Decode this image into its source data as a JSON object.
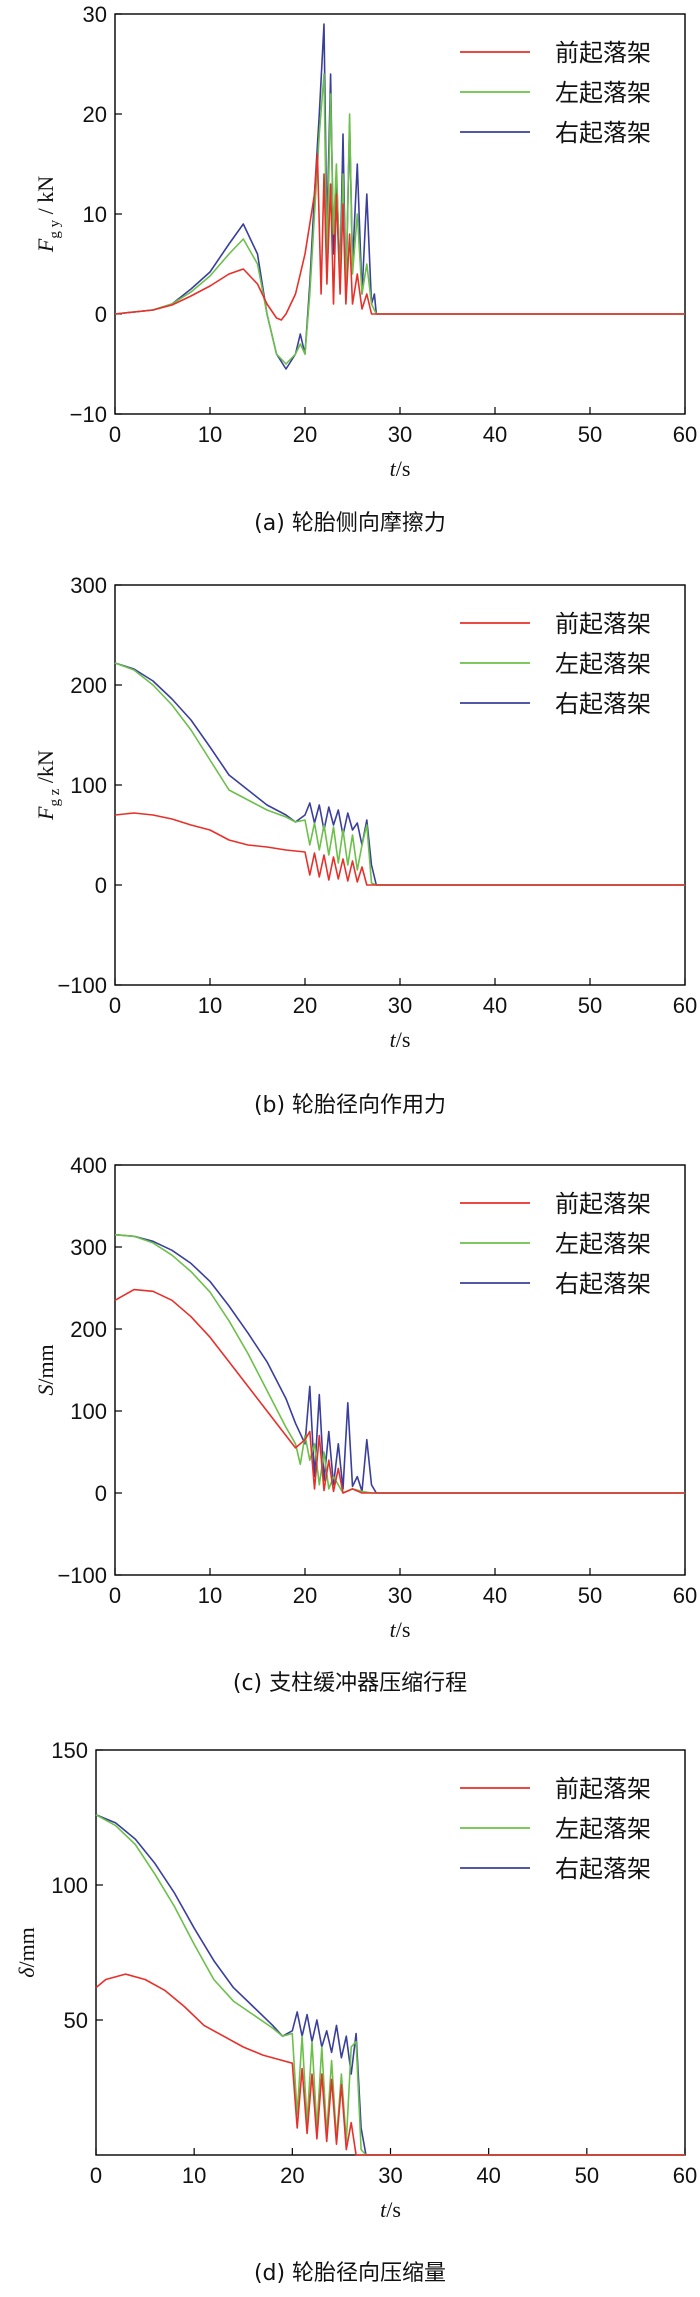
{
  "chart_data": [
    {
      "type": "line",
      "caption": "(a) 轮胎侧向摩擦力",
      "ylabel_main": "F",
      "ylabel_sub": "g y",
      "ylabel_unit": " / kN",
      "xlabel_main": "t",
      "xlabel_unit": "/s",
      "xlim": [
        0,
        60
      ],
      "ylim": [
        -10,
        30
      ],
      "xticks": [
        0,
        10,
        20,
        30,
        40,
        50,
        60
      ],
      "yticks": [
        -10,
        0,
        10,
        20,
        30
      ],
      "legend_position": "top-right",
      "series": [
        {
          "name": "前起落架",
          "color": "#e8302a",
          "x": [
            0,
            2,
            4,
            6,
            8,
            10,
            12,
            13.5,
            15,
            16,
            17,
            17.5,
            18,
            19,
            19.5,
            20,
            20.5,
            21,
            21.3,
            21.7,
            22,
            22.3,
            22.7,
            23,
            23.3,
            23.7,
            24,
            24.3,
            24.7,
            25,
            25.5,
            26,
            26.5,
            27,
            27.5,
            60
          ],
          "y": [
            0,
            0.2,
            0.4,
            0.9,
            1.8,
            2.8,
            4,
            4.5,
            3,
            1,
            -0.4,
            -0.6,
            0,
            2,
            4,
            6,
            9,
            12,
            16,
            2,
            14,
            3,
            13,
            1,
            12,
            2,
            11,
            1,
            8,
            1,
            4,
            0.5,
            2,
            0,
            0,
            0
          ]
        },
        {
          "name": "左起落架",
          "color": "#6cc04a",
          "x": [
            0,
            2,
            4,
            6,
            8,
            10,
            12,
            13.5,
            15,
            16,
            17,
            18,
            19,
            19.5,
            20,
            20.5,
            21,
            21.5,
            22,
            22.3,
            22.7,
            23,
            23.3,
            23.7,
            24,
            24.3,
            24.7,
            25,
            25.5,
            26,
            26.5,
            27,
            27.5,
            60
          ],
          "y": [
            0,
            0.2,
            0.4,
            1,
            2.2,
            3.8,
            6,
            7.5,
            5,
            0,
            -4,
            -5,
            -4,
            -3,
            -4,
            2,
            10,
            18,
            24,
            5,
            22,
            8,
            15,
            3,
            14,
            2,
            20,
            4,
            10,
            2,
            5,
            1,
            0,
            0
          ]
        },
        {
          "name": "右起落架",
          "color": "#3a3f9c",
          "x": [
            0,
            2,
            4,
            6,
            8,
            10,
            12,
            13.5,
            15,
            16,
            17,
            18,
            19,
            19.5,
            20,
            20.5,
            21,
            21.5,
            22,
            22.3,
            22.7,
            23,
            23.3,
            23.7,
            24,
            24.3,
            24.7,
            25,
            25.5,
            26,
            26.5,
            27,
            27.3,
            27.5,
            60
          ],
          "y": [
            0,
            0.2,
            0.4,
            1,
            2.5,
            4.2,
            7,
            9,
            6,
            0,
            -4,
            -5.5,
            -4,
            -2,
            -4,
            3,
            12,
            20,
            29,
            8,
            24,
            6,
            14,
            4,
            18,
            2,
            19,
            5,
            15,
            2,
            12,
            1,
            2,
            0,
            0
          ]
        }
      ]
    },
    {
      "type": "line",
      "caption": "(b) 轮胎径向作用力",
      "ylabel_main": "F",
      "ylabel_sub": "g z",
      "ylabel_unit": " /kN",
      "xlabel_main": "t",
      "xlabel_unit": "/s",
      "xlim": [
        0,
        60
      ],
      "ylim": [
        -100,
        300
      ],
      "xticks": [
        0,
        10,
        20,
        30,
        40,
        50,
        60
      ],
      "yticks": [
        -100,
        0,
        100,
        200,
        300
      ],
      "legend_position": "top-right",
      "series": [
        {
          "name": "前起落架",
          "color": "#e8302a",
          "x": [
            0,
            2,
            4,
            6,
            8,
            10,
            12,
            14,
            16,
            18,
            20,
            20.5,
            21,
            21.5,
            22,
            22.5,
            23,
            23.5,
            24,
            24.5,
            25,
            25.5,
            26,
            26.5,
            27,
            60
          ],
          "y": [
            70,
            72,
            70,
            66,
            60,
            55,
            45,
            40,
            38,
            35,
            33,
            10,
            32,
            8,
            30,
            5,
            28,
            6,
            26,
            4,
            24,
            3,
            18,
            0,
            0,
            0
          ]
        },
        {
          "name": "左起落架",
          "color": "#6cc04a",
          "x": [
            0,
            2,
            4,
            6,
            8,
            10,
            12,
            14,
            16,
            18,
            19,
            20,
            20.5,
            21,
            21.5,
            22,
            22.5,
            23,
            23.5,
            24,
            24.5,
            25,
            25.5,
            26,
            26.5,
            27,
            27.5,
            60
          ],
          "y": [
            222,
            215,
            200,
            180,
            155,
            125,
            95,
            85,
            75,
            68,
            63,
            65,
            40,
            62,
            35,
            60,
            30,
            58,
            22,
            55,
            20,
            50,
            15,
            40,
            60,
            2,
            0,
            0
          ]
        },
        {
          "name": "右起落架",
          "color": "#3a3f9c",
          "x": [
            0,
            2,
            4,
            6,
            8,
            10,
            12,
            14,
            16,
            18,
            19,
            20,
            20.5,
            21,
            21.5,
            22,
            22.5,
            23,
            23.5,
            24,
            24.5,
            25,
            25.5,
            26,
            26.5,
            27,
            27.5,
            60
          ],
          "y": [
            222,
            216,
            204,
            186,
            165,
            138,
            110,
            95,
            80,
            70,
            63,
            70,
            82,
            62,
            80,
            55,
            78,
            60,
            75,
            50,
            72,
            55,
            62,
            40,
            65,
            20,
            0,
            0
          ]
        }
      ]
    },
    {
      "type": "line",
      "caption": "(c) 支柱缓冲器压缩行程",
      "ylabel_main": "S",
      "ylabel_sub": "",
      "ylabel_unit": "/mm",
      "xlabel_main": "t",
      "xlabel_unit": "/s",
      "xlim": [
        0,
        60
      ],
      "ylim": [
        -100,
        400
      ],
      "xticks": [
        0,
        10,
        20,
        30,
        40,
        50,
        60
      ],
      "yticks": [
        -100,
        0,
        100,
        200,
        300,
        400
      ],
      "legend_position": "top-right",
      "series": [
        {
          "name": "前起落架",
          "color": "#e8302a",
          "x": [
            0,
            2,
            4,
            6,
            8,
            10,
            12,
            14,
            16,
            18,
            19,
            20,
            20.5,
            21,
            21.5,
            22,
            22.5,
            23,
            23.5,
            24,
            25,
            26,
            27,
            60
          ],
          "y": [
            235,
            248,
            246,
            235,
            215,
            190,
            160,
            130,
            100,
            70,
            55,
            65,
            75,
            5,
            70,
            3,
            40,
            2,
            30,
            0,
            5,
            0,
            0,
            0
          ]
        },
        {
          "name": "左起落架",
          "color": "#6cc04a",
          "x": [
            0,
            2,
            4,
            6,
            8,
            10,
            12,
            14,
            16,
            18,
            19,
            19.5,
            20,
            20.5,
            21,
            21.5,
            22,
            22.5,
            23,
            24,
            25,
            26,
            27,
            28,
            60
          ],
          "y": [
            315,
            313,
            305,
            290,
            270,
            245,
            210,
            170,
            125,
            80,
            60,
            35,
            70,
            40,
            60,
            10,
            50,
            5,
            20,
            0,
            5,
            2,
            0,
            0,
            0
          ]
        },
        {
          "name": "右起落架",
          "color": "#3a3f9c",
          "x": [
            0,
            2,
            4,
            6,
            8,
            10,
            12,
            14,
            16,
            18,
            19,
            20,
            20.5,
            21,
            21.5,
            22,
            22.5,
            23,
            23.5,
            24,
            24.5,
            25,
            25.5,
            26,
            26.5,
            27,
            27.5,
            60
          ],
          "y": [
            315,
            313,
            307,
            296,
            280,
            258,
            228,
            195,
            160,
            115,
            85,
            60,
            130,
            20,
            120,
            15,
            75,
            10,
            60,
            5,
            110,
            8,
            20,
            2,
            65,
            10,
            0,
            0
          ]
        }
      ]
    },
    {
      "type": "line",
      "caption": "(d) 轮胎径向压缩量",
      "ylabel_main": "δ",
      "ylabel_sub": "",
      "ylabel_unit": "/mm",
      "xlabel_main": "t",
      "xlabel_unit": "/s",
      "xlim": [
        0,
        60
      ],
      "ylim": [
        0,
        150
      ],
      "xticks": [
        0,
        10,
        20,
        30,
        40,
        50,
        60
      ],
      "yticks": [
        50,
        100,
        150
      ],
      "xtick_labels": [
        "0",
        "10",
        "20",
        "30",
        "40",
        "50",
        "60"
      ],
      "legend_position": "top-right",
      "series": [
        {
          "name": "前起落架",
          "color": "#e8302a",
          "x": [
            0,
            1,
            3,
            5,
            7,
            9,
            11,
            13,
            15,
            17,
            19,
            20,
            20.5,
            21,
            21.5,
            22,
            22.5,
            23,
            23.5,
            24,
            24.5,
            25,
            25.5,
            26,
            26.5,
            27,
            60
          ],
          "y": [
            62,
            65,
            67,
            65,
            61,
            55,
            48,
            44,
            40,
            37,
            35,
            34,
            10,
            32,
            8,
            30,
            6,
            30,
            5,
            28,
            4,
            26,
            2,
            12,
            0,
            0,
            0
          ]
        },
        {
          "name": "左起落架",
          "color": "#6cc04a",
          "x": [
            0,
            2,
            4,
            6,
            8,
            10,
            12,
            14,
            16,
            18,
            19,
            20,
            20.5,
            21,
            21.5,
            22,
            22.5,
            23,
            23.5,
            24,
            24.5,
            25,
            25.5,
            26,
            26.5,
            27,
            27.5,
            60
          ],
          "y": [
            126,
            122,
            115,
            104,
            92,
            78,
            65,
            57,
            52,
            47,
            44,
            45,
            15,
            44,
            12,
            42,
            10,
            40,
            8,
            35,
            6,
            30,
            5,
            40,
            42,
            2,
            0,
            0
          ]
        },
        {
          "name": "右起落架",
          "color": "#3a3f9c",
          "x": [
            0,
            2,
            4,
            6,
            8,
            10,
            12,
            14,
            16,
            18,
            19,
            20,
            20.5,
            21,
            21.5,
            22,
            22.5,
            23,
            23.5,
            24,
            24.5,
            25,
            25.5,
            26,
            26.5,
            27,
            27.5,
            60
          ],
          "y": [
            126,
            123,
            117,
            108,
            97,
            84,
            72,
            62,
            55,
            48,
            44,
            46,
            53,
            44,
            52,
            42,
            50,
            40,
            46,
            38,
            48,
            36,
            44,
            30,
            45,
            10,
            0,
            0
          ]
        }
      ]
    }
  ]
}
